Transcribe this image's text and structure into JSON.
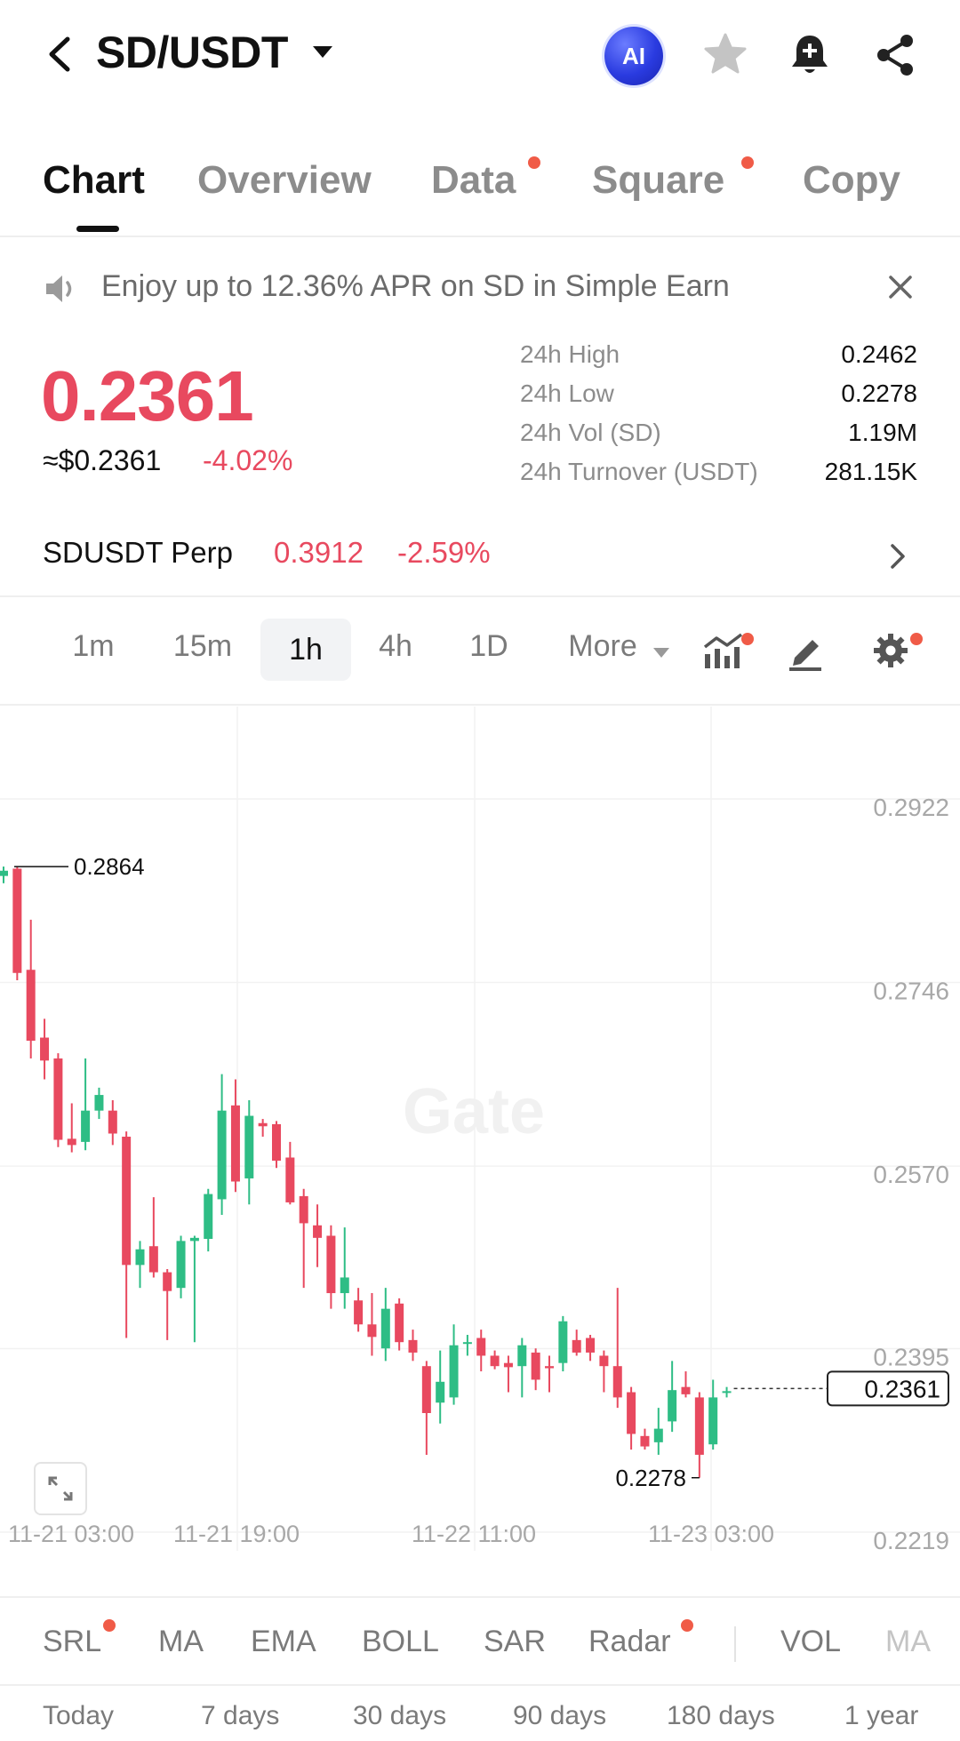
{
  "header": {
    "pair": "SD/USDT",
    "ai_label": "AI",
    "icons": [
      "back-arrow-icon",
      "caret-down-icon",
      "star-icon",
      "bell-plus-icon",
      "share-icon"
    ]
  },
  "tabs": [
    {
      "label": "Chart",
      "active": true,
      "dot": false
    },
    {
      "label": "Overview",
      "active": false,
      "dot": false
    },
    {
      "label": "Data",
      "active": false,
      "dot": true
    },
    {
      "label": "Square",
      "active": false,
      "dot": true
    },
    {
      "label": "Copy",
      "active": false,
      "dot": false
    }
  ],
  "banner": {
    "text": "Enjoy up to 12.36% APR on SD in Simple Earn",
    "icons": [
      "speaker-icon",
      "close-icon"
    ]
  },
  "ticker": {
    "last_price": "0.2361",
    "usd_price": "≈$0.2361",
    "change_pct": "-4.02%",
    "stats": [
      {
        "label": "24h High",
        "value": "0.2462"
      },
      {
        "label": "24h Low",
        "value": "0.2278"
      },
      {
        "label": "24h Vol (SD)",
        "value": "1.19M"
      },
      {
        "label": "24h Turnover (USDT)",
        "value": "281.15K"
      }
    ]
  },
  "perp": {
    "name": "SDUSDT Perp",
    "price": "0.3912",
    "change": "-2.59%"
  },
  "intervals": {
    "items": [
      "1m",
      "15m",
      "1h",
      "4h",
      "1D",
      "More"
    ],
    "selected": "1h",
    "tool_icons": [
      "indicator-chart-icon",
      "draw-pen-icon",
      "settings-gear-icon"
    ]
  },
  "chart_data": {
    "type": "candlestick",
    "watermark": "Gate",
    "y_ticks": [
      "0.2922",
      "0.2746",
      "0.2570",
      "0.2395",
      "0.2219"
    ],
    "x_ticks": [
      "11-21 03:00",
      "11-21 19:00",
      "11-22 11:00",
      "11-23 03:00"
    ],
    "high_marker": "0.2864",
    "low_marker": "0.2278",
    "last_price_tag": "0.2361",
    "candles": [
      {
        "o": 0.2855,
        "h": 0.2864,
        "l": 0.2848,
        "c": 0.286
      },
      {
        "o": 0.2862,
        "h": 0.2864,
        "l": 0.2755,
        "c": 0.2762
      },
      {
        "o": 0.2765,
        "h": 0.2813,
        "l": 0.268,
        "c": 0.2697
      },
      {
        "o": 0.27,
        "h": 0.2718,
        "l": 0.266,
        "c": 0.2678
      },
      {
        "o": 0.268,
        "h": 0.2685,
        "l": 0.2595,
        "c": 0.2602
      },
      {
        "o": 0.2603,
        "h": 0.2637,
        "l": 0.259,
        "c": 0.2597
      },
      {
        "o": 0.26,
        "h": 0.268,
        "l": 0.2592,
        "c": 0.263
      },
      {
        "o": 0.263,
        "h": 0.2652,
        "l": 0.2622,
        "c": 0.2645
      },
      {
        "o": 0.263,
        "h": 0.264,
        "l": 0.2597,
        "c": 0.2608
      },
      {
        "o": 0.2605,
        "h": 0.261,
        "l": 0.2412,
        "c": 0.2482
      },
      {
        "o": 0.2482,
        "h": 0.2505,
        "l": 0.246,
        "c": 0.2497
      },
      {
        "o": 0.25,
        "h": 0.2547,
        "l": 0.247,
        "c": 0.2475
      },
      {
        "o": 0.2475,
        "h": 0.2478,
        "l": 0.241,
        "c": 0.2457
      },
      {
        "o": 0.246,
        "h": 0.251,
        "l": 0.245,
        "c": 0.2505
      },
      {
        "o": 0.2505,
        "h": 0.251,
        "l": 0.2408,
        "c": 0.2508
      },
      {
        "o": 0.2507,
        "h": 0.2555,
        "l": 0.2495,
        "c": 0.255
      },
      {
        "o": 0.2545,
        "h": 0.2665,
        "l": 0.253,
        "c": 0.263
      },
      {
        "o": 0.2635,
        "h": 0.266,
        "l": 0.2552,
        "c": 0.2562
      },
      {
        "o": 0.2565,
        "h": 0.264,
        "l": 0.254,
        "c": 0.2625
      },
      {
        "o": 0.2618,
        "h": 0.2622,
        "l": 0.2605,
        "c": 0.2615
      },
      {
        "o": 0.2617,
        "h": 0.262,
        "l": 0.2575,
        "c": 0.2582
      },
      {
        "o": 0.2585,
        "h": 0.26,
        "l": 0.254,
        "c": 0.2542
      },
      {
        "o": 0.2548,
        "h": 0.2555,
        "l": 0.246,
        "c": 0.2522
      },
      {
        "o": 0.252,
        "h": 0.254,
        "l": 0.248,
        "c": 0.2508
      },
      {
        "o": 0.251,
        "h": 0.252,
        "l": 0.244,
        "c": 0.2455
      },
      {
        "o": 0.2455,
        "h": 0.2518,
        "l": 0.244,
        "c": 0.247
      },
      {
        "o": 0.2448,
        "h": 0.246,
        "l": 0.2418,
        "c": 0.2425
      },
      {
        "o": 0.2425,
        "h": 0.2455,
        "l": 0.2395,
        "c": 0.2413
      },
      {
        "o": 0.2402,
        "h": 0.246,
        "l": 0.239,
        "c": 0.244
      },
      {
        "o": 0.2445,
        "h": 0.245,
        "l": 0.24,
        "c": 0.2408
      },
      {
        "o": 0.241,
        "h": 0.242,
        "l": 0.239,
        "c": 0.2398
      },
      {
        "o": 0.2385,
        "h": 0.239,
        "l": 0.23,
        "c": 0.234
      },
      {
        "o": 0.235,
        "h": 0.24,
        "l": 0.233,
        "c": 0.237
      },
      {
        "o": 0.2355,
        "h": 0.2425,
        "l": 0.2348,
        "c": 0.2405
      },
      {
        "o": 0.2408,
        "h": 0.2415,
        "l": 0.2395,
        "c": 0.2408
      },
      {
        "o": 0.2412,
        "h": 0.242,
        "l": 0.238,
        "c": 0.2395
      },
      {
        "o": 0.2395,
        "h": 0.24,
        "l": 0.2382,
        "c": 0.2385
      },
      {
        "o": 0.2388,
        "h": 0.2395,
        "l": 0.236,
        "c": 0.2384
      },
      {
        "o": 0.2385,
        "h": 0.2412,
        "l": 0.2355,
        "c": 0.2405
      },
      {
        "o": 0.2398,
        "h": 0.2402,
        "l": 0.2362,
        "c": 0.2372
      },
      {
        "o": 0.2385,
        "h": 0.2395,
        "l": 0.236,
        "c": 0.2383
      },
      {
        "o": 0.2388,
        "h": 0.2433,
        "l": 0.238,
        "c": 0.2428
      },
      {
        "o": 0.241,
        "h": 0.242,
        "l": 0.2395,
        "c": 0.2398
      },
      {
        "o": 0.2412,
        "h": 0.2415,
        "l": 0.239,
        "c": 0.2398
      },
      {
        "o": 0.2395,
        "h": 0.24,
        "l": 0.236,
        "c": 0.2385
      },
      {
        "o": 0.2385,
        "h": 0.246,
        "l": 0.2345,
        "c": 0.2355
      },
      {
        "o": 0.236,
        "h": 0.2365,
        "l": 0.2305,
        "c": 0.232
      },
      {
        "o": 0.2318,
        "h": 0.2325,
        "l": 0.2305,
        "c": 0.2308
      },
      {
        "o": 0.2312,
        "h": 0.2345,
        "l": 0.23,
        "c": 0.2325
      },
      {
        "o": 0.2332,
        "h": 0.239,
        "l": 0.2322,
        "c": 0.2362
      },
      {
        "o": 0.2365,
        "h": 0.238,
        "l": 0.2355,
        "c": 0.2358
      },
      {
        "o": 0.2355,
        "h": 0.236,
        "l": 0.2278,
        "c": 0.23
      },
      {
        "o": 0.231,
        "h": 0.2372,
        "l": 0.2305,
        "c": 0.2355
      },
      {
        "o": 0.236,
        "h": 0.2365,
        "l": 0.2355,
        "c": 0.2361
      }
    ]
  },
  "indicators": {
    "items": [
      {
        "label": "SRL",
        "dot": true
      },
      {
        "label": "MA",
        "dot": false
      },
      {
        "label": "EMA",
        "dot": false
      },
      {
        "label": "BOLL",
        "dot": false
      },
      {
        "label": "SAR",
        "dot": false
      },
      {
        "label": "Radar",
        "dot": true
      },
      {
        "label": "VOL",
        "dot": false
      },
      {
        "label": "MA",
        "dot": false
      }
    ],
    "expand_icon": "expand-arrows-icon"
  },
  "ranges": [
    "Today",
    "7 days",
    "30 days",
    "90 days",
    "180 days",
    "1 year"
  ],
  "colors": {
    "up": "#2ebd85",
    "down": "#e8495f",
    "accent_dot": "#f05b47"
  }
}
